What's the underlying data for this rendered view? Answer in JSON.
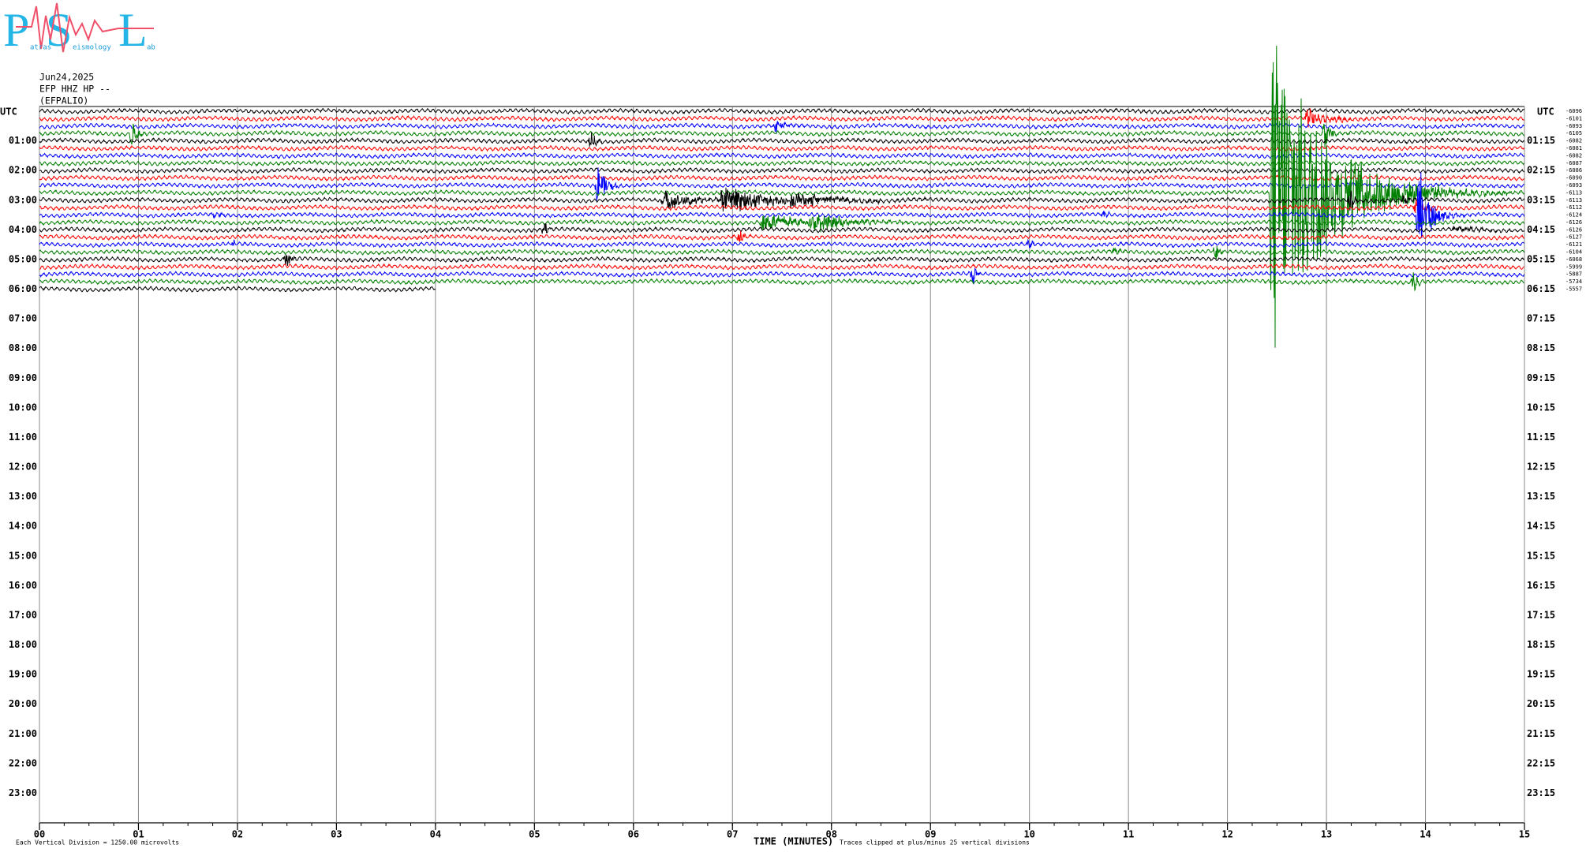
{
  "header": {
    "date": "Jun24,2025",
    "station": "EFP HHZ HP --",
    "site": "(EFPALIO)"
  },
  "logo": {
    "letters": [
      "P",
      "S",
      "L"
    ],
    "words": [
      "atras",
      "eismology",
      "ab"
    ]
  },
  "chart_data": {
    "type": "helicorder",
    "x_label": "TIME (MINUTES)",
    "scale_note": "Each Vertical Division = 1250.00 microvolts",
    "clip_note": "Traces clipped at plus/minus 25 vertical divisions",
    "clip": 25,
    "y_unit_label": "UTC",
    "xlim": [
      0,
      15
    ],
    "xticks": [
      {
        "value": 0,
        "label": "00"
      },
      {
        "value": 1,
        "label": "01"
      },
      {
        "value": 2,
        "label": "02"
      },
      {
        "value": 3,
        "label": "03"
      },
      {
        "value": 4,
        "label": "04"
      },
      {
        "value": 5,
        "label": "05"
      },
      {
        "value": 6,
        "label": "06"
      },
      {
        "value": 7,
        "label": "07"
      },
      {
        "value": 8,
        "label": "08"
      },
      {
        "value": 9,
        "label": "09"
      },
      {
        "value": 10,
        "label": "10"
      },
      {
        "value": 11,
        "label": "11"
      },
      {
        "value": 12,
        "label": "12"
      },
      {
        "value": 13,
        "label": "13"
      },
      {
        "value": 14,
        "label": "14"
      },
      {
        "value": 15,
        "label": "15"
      }
    ],
    "ylim": [
      0,
      24
    ],
    "yticks_left": [
      {
        "value": 1,
        "label": "01:00"
      },
      {
        "value": 2,
        "label": "02:00"
      },
      {
        "value": 3,
        "label": "03:00"
      },
      {
        "value": 4,
        "label": "04:00"
      },
      {
        "value": 5,
        "label": "05:00"
      },
      {
        "value": 6,
        "label": "06:00"
      },
      {
        "value": 7,
        "label": "07:00"
      },
      {
        "value": 8,
        "label": "08:00"
      },
      {
        "value": 9,
        "label": "09:00"
      },
      {
        "value": 10,
        "label": "10:00"
      },
      {
        "value": 11,
        "label": "11:00"
      },
      {
        "value": 12,
        "label": "12:00"
      },
      {
        "value": 13,
        "label": "13:00"
      },
      {
        "value": 14,
        "label": "14:00"
      },
      {
        "value": 15,
        "label": "15:00"
      },
      {
        "value": 16,
        "label": "16:00"
      },
      {
        "value": 17,
        "label": "17:00"
      },
      {
        "value": 18,
        "label": "18:00"
      },
      {
        "value": 19,
        "label": "19:00"
      },
      {
        "value": 20,
        "label": "20:00"
      },
      {
        "value": 21,
        "label": "21:00"
      },
      {
        "value": 22,
        "label": "22:00"
      },
      {
        "value": 23,
        "label": "23:00"
      }
    ],
    "yticks_right": [
      {
        "value": 1,
        "label": "01:15"
      },
      {
        "value": 2,
        "label": "02:15"
      },
      {
        "value": 3,
        "label": "03:15"
      },
      {
        "value": 4,
        "label": "04:15"
      },
      {
        "value": 5,
        "label": "05:15"
      },
      {
        "value": 6,
        "label": "06:15"
      },
      {
        "value": 7,
        "label": "07:15"
      },
      {
        "value": 8,
        "label": "08:15"
      },
      {
        "value": 9,
        "label": "09:15"
      },
      {
        "value": 10,
        "label": "10:15"
      },
      {
        "value": 11,
        "label": "11:15"
      },
      {
        "value": 12,
        "label": "12:15"
      },
      {
        "value": 13,
        "label": "13:15"
      },
      {
        "value": 14,
        "label": "14:15"
      },
      {
        "value": 15,
        "label": "15:15"
      },
      {
        "value": 16,
        "label": "16:15"
      },
      {
        "value": 17,
        "label": "17:15"
      },
      {
        "value": 18,
        "label": "18:15"
      },
      {
        "value": 19,
        "label": "19:15"
      },
      {
        "value": 20,
        "label": "20:15"
      },
      {
        "value": 21,
        "label": "21:15"
      },
      {
        "value": 22,
        "label": "22:15"
      },
      {
        "value": 23,
        "label": "23:15"
      }
    ],
    "colors": [
      "#000000",
      "#ff0000",
      "#0000ff",
      "#008000"
    ],
    "traces": [
      {
        "offset": -6096,
        "end": 15,
        "events": []
      },
      {
        "offset": -6101,
        "end": 15,
        "events": [
          {
            "minute": 12.8,
            "amplitude": 1.5,
            "duration": 0.6
          }
        ]
      },
      {
        "offset": -6093,
        "end": 15,
        "events": [
          {
            "minute": 7.43,
            "amplitude": 1.2,
            "duration": 0.2
          }
        ]
      },
      {
        "offset": -6105,
        "end": 15,
        "events": [
          {
            "minute": 0.93,
            "amplitude": 2,
            "duration": 0.15
          },
          {
            "minute": 12.98,
            "amplitude": 2.5,
            "duration": 0.15
          }
        ]
      },
      {
        "offset": -6082,
        "end": 15,
        "events": [
          {
            "minute": 5.57,
            "amplitude": 2,
            "duration": 0.12
          }
        ]
      },
      {
        "offset": -6081,
        "end": 15,
        "events": []
      },
      {
        "offset": -6082,
        "end": 15,
        "events": []
      },
      {
        "offset": -6087,
        "end": 15,
        "events": []
      },
      {
        "offset": -6086,
        "end": 15,
        "events": []
      },
      {
        "offset": -6090,
        "end": 15,
        "events": []
      },
      {
        "offset": -6093,
        "end": 15,
        "events": [
          {
            "minute": 5.64,
            "amplitude": 3.5,
            "duration": 0.2
          }
        ]
      },
      {
        "offset": -6113,
        "end": 15,
        "events": [
          {
            "minute": 12.45,
            "amplitude": 25,
            "duration": 1.5
          }
        ]
      },
      {
        "offset": -6113,
        "end": 15,
        "events": [
          {
            "minute": 6.3,
            "amplitude": 1.5,
            "duration": 0.8
          },
          {
            "minute": 6.9,
            "amplitude": 2.2,
            "duration": 1.2
          },
          {
            "minute": 7.6,
            "amplitude": 1,
            "duration": 1.5
          },
          {
            "minute": 13.24,
            "amplitude": 2,
            "duration": 0.12
          },
          {
            "minute": 13.78,
            "amplitude": 1.5,
            "duration": 0.12
          }
        ]
      },
      {
        "offset": -6112,
        "end": 15,
        "events": [
          {
            "minute": 13.9,
            "amplitude": 1,
            "duration": 0.4
          }
        ]
      },
      {
        "offset": -6124,
        "end": 15,
        "events": [
          {
            "minute": 13.93,
            "amplitude": 8,
            "duration": 0.3
          },
          {
            "minute": 1.75,
            "amplitude": 0.5,
            "duration": 0.2
          },
          {
            "minute": 10.75,
            "amplitude": 0.5,
            "duration": 0.2
          }
        ]
      },
      {
        "offset": -6126,
        "end": 15,
        "events": [
          {
            "minute": 7.3,
            "amplitude": 1.5,
            "duration": 1.0
          },
          {
            "minute": 7.8,
            "amplitude": 1.5,
            "duration": 1.0
          }
        ]
      },
      {
        "offset": -6126,
        "end": 15,
        "events": [
          {
            "minute": 5.1,
            "amplitude": 1.5,
            "duration": 0.1
          },
          {
            "minute": 14.3,
            "amplitude": 0.6,
            "duration": 0.6
          }
        ]
      },
      {
        "offset": -6127,
        "end": 15,
        "events": [
          {
            "minute": 7.07,
            "amplitude": 1.5,
            "duration": 0.1
          }
        ]
      },
      {
        "offset": -6121,
        "end": 15,
        "events": [
          {
            "minute": 9.99,
            "amplitude": 1.2,
            "duration": 0.1
          },
          {
            "minute": 1.96,
            "amplitude": 0.6,
            "duration": 0.05
          }
        ]
      },
      {
        "offset": -6104,
        "end": 15,
        "events": [
          {
            "minute": 11.88,
            "amplitude": 1.5,
            "duration": 0.1
          },
          {
            "minute": 10.85,
            "amplitude": 0.5,
            "duration": 0.2
          }
        ]
      },
      {
        "offset": -6068,
        "end": 15,
        "events": [
          {
            "minute": 2.49,
            "amplitude": 1.8,
            "duration": 0.12
          }
        ]
      },
      {
        "offset": -5999,
        "end": 15,
        "events": []
      },
      {
        "offset": -5887,
        "end": 15,
        "events": [
          {
            "minute": 9.43,
            "amplitude": 2,
            "duration": 0.1
          }
        ]
      },
      {
        "offset": -5734,
        "end": 15,
        "events": [
          {
            "minute": 13.88,
            "amplitude": 1.8,
            "duration": 0.12
          }
        ]
      },
      {
        "offset": -5557,
        "end": 4,
        "events": []
      }
    ]
  }
}
